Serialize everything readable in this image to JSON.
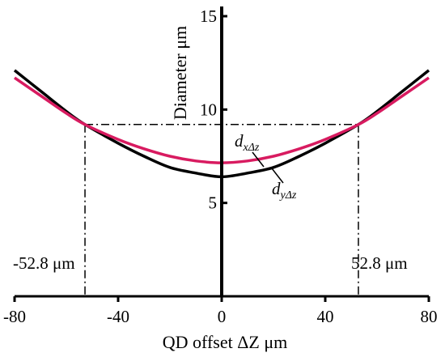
{
  "chart_data": {
    "type": "line",
    "xlabel": "QD offset ΔZ   μm",
    "ylabel": "Diameter  μm",
    "xlim": [
      -80,
      80
    ],
    "ylim": [
      0,
      15
    ],
    "xticks": [
      "-80",
      "-40",
      "0",
      "40",
      "80"
    ],
    "yticks": [
      "5",
      "10",
      "15"
    ],
    "xtick_values": [
      -80,
      -40,
      0,
      40,
      80
    ],
    "ytick_values": [
      5,
      10,
      15
    ],
    "grid": false,
    "series": [
      {
        "label_base": "d",
        "label_sub": "yΔz",
        "color": "#000000",
        "x": [
          -80,
          -70,
          -60,
          -52.8,
          -40,
          -30,
          -20,
          -10,
          0,
          10,
          20,
          30,
          40,
          52.8,
          60,
          70,
          80
        ],
        "y": [
          12.1,
          11.0,
          9.9,
          9.2,
          8.2,
          7.5,
          6.9,
          6.6,
          6.4,
          6.6,
          6.9,
          7.5,
          8.2,
          9.2,
          9.9,
          11.0,
          12.1
        ]
      },
      {
        "label_base": "d",
        "label_sub": "xΔz",
        "color": "#d81b60",
        "x": [
          -80,
          -70,
          -60,
          -52.8,
          -40,
          -30,
          -20,
          -10,
          0,
          10,
          20,
          30,
          40,
          52.8,
          60,
          70,
          80
        ],
        "y": [
          11.7,
          10.75,
          9.8,
          9.2,
          8.4,
          7.9,
          7.5,
          7.25,
          7.15,
          7.25,
          7.5,
          7.9,
          8.4,
          9.2,
          9.8,
          10.75,
          11.7
        ]
      }
    ],
    "reference": {
      "x_left": -52.8,
      "x_right": 52.8,
      "y_level": 9.2,
      "left_label": "-52.8 μm",
      "right_label": "52.8 μm"
    }
  }
}
